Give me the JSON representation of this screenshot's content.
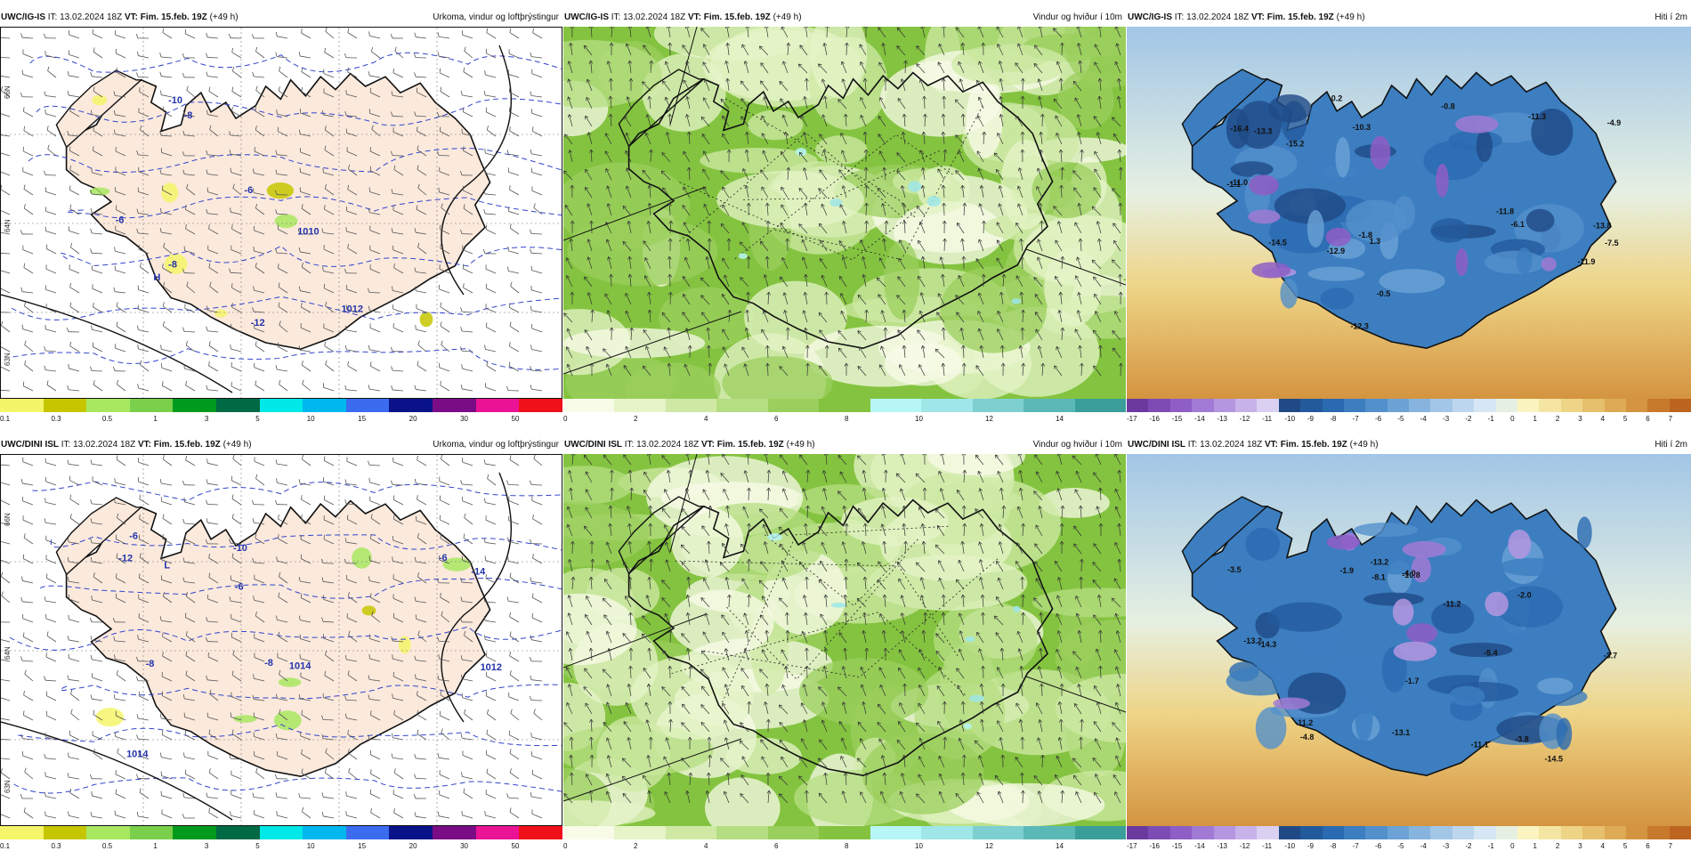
{
  "rows": [
    {
      "model": "UWC/IG-IS",
      "panels": [
        {
          "type": "precip",
          "model": "UWC/IG-IS",
          "it_text": "IT: 13.02.2024 18Z",
          "vt_text": "VT: Fim. 15.feb. 19Z",
          "lead": "(+49 h)",
          "title": "Úrkoma, vindur og loftþrýstingur",
          "labels": [
            "H",
            "1012",
            "1010",
            "-6",
            "-8",
            "-10",
            "-12",
            "-6",
            "-8"
          ],
          "lat_labels": [
            "66N",
            "64N",
            "63N"
          ]
        },
        {
          "type": "wind",
          "model": "UWC/IG-IS",
          "it_text": "IT: 13.02.2024 18Z",
          "vt_text": "VT: Fim. 15.feb. 19Z",
          "lead": "(+49 h)",
          "title": "Vindur og hviður í 10m"
        },
        {
          "type": "temp",
          "model": "UWC/IG-IS",
          "it_text": "IT: 13.02.2024 18Z",
          "vt_text": "VT: Fim. 15.feb. 19Z",
          "lead": "(+49 h)",
          "title": "Hiti í 2m",
          "values": [
            "-16.4",
            "-14.5",
            "-12.3",
            "-11.8",
            "-11.9",
            "-11.0",
            "-1.1",
            "-11.3",
            "-13.8",
            "-10.3",
            "-13.3",
            "-0.5",
            "-4.9",
            "-15.2",
            "-6.1",
            "-12.9",
            "-1.8",
            "0.2",
            "-0.8",
            "-7.5",
            "1.3"
          ]
        }
      ]
    },
    {
      "model": "UWC/DINI ISL",
      "panels": [
        {
          "type": "precip",
          "model": "UWC/DINI ISL",
          "it_text": "IT: 13.02.2024 18Z",
          "vt_text": "VT: Fim. 15.feb. 19Z",
          "lead": "(+49 h)",
          "title": "Úrkoma, vindur og loftþrýstingur",
          "labels": [
            "L",
            "1012",
            "1014",
            "1014",
            "-6",
            "-8",
            "-10",
            "-12",
            "-14",
            "-6",
            "-8",
            "-6"
          ],
          "lat_labels": [
            "66N",
            "64N",
            "63N"
          ]
        },
        {
          "type": "wind",
          "model": "UWC/DINI ISL",
          "it_text": "IT: 13.02.2024 18Z",
          "vt_text": "VT: Fim. 15.feb. 19Z",
          "lead": "(+49 h)",
          "title": "Vindur og hviður í 10m"
        },
        {
          "type": "temp",
          "model": "UWC/DINI ISL",
          "it_text": "IT: 13.02.2024 18Z",
          "vt_text": "VT: Fim. 15.feb. 19Z",
          "lead": "(+49 h)",
          "title": "Hiti í 2m",
          "values": [
            "-14.3",
            "-13.2",
            "-11.2",
            "-13.1",
            "-2.0",
            "-3.7",
            "-4.8",
            "-5.4",
            "-13.2",
            "-3.8",
            "-4.0",
            "-14.5",
            "-8.1",
            "-1.7",
            "-11.2",
            "-10.8",
            "-3.5",
            "-11.1",
            "-1.9"
          ]
        }
      ]
    }
  ],
  "legends": {
    "precip": {
      "ticks": [
        "0.1",
        "0.3",
        "0.5",
        "1",
        "3",
        "5",
        "10",
        "15",
        "20",
        "30",
        "50"
      ],
      "colors": [
        "#f5f56a",
        "#c6c600",
        "#a8e860",
        "#7ad04a",
        "#009a1e",
        "#006a44",
        "#00e8e8",
        "#00b8ee",
        "#3b6cf0",
        "#0a128a",
        "#7a0c86",
        "#ea1396",
        "#f0101a"
      ]
    },
    "wind": {
      "ticks": [
        "0",
        "2",
        "4",
        "6",
        "8",
        "10",
        "12",
        "14"
      ],
      "colors": [
        "#f8fbe8",
        "#e6f4c8",
        "#cfe9a5",
        "#b5dd82",
        "#9bcf5d",
        "#84c340",
        "#b6f6f6",
        "#9ee6e8",
        "#7ed0d0",
        "#5ab8b6",
        "#3a9e9a"
      ]
    },
    "temp": {
      "ticks": [
        "-17",
        "-16",
        "-15",
        "-14",
        "-13",
        "-12",
        "-11",
        "-10",
        "-9",
        "-8",
        "-7",
        "-6",
        "-5",
        "-4",
        "-3",
        "-2",
        "-1",
        "0",
        "1",
        "2",
        "3",
        "4",
        "5",
        "6",
        "7"
      ],
      "colors": [
        "#6a3a9e",
        "#7c4cb4",
        "#8e5ec6",
        "#a07ad4",
        "#b496e0",
        "#c8b2ea",
        "#dad0f2",
        "#1f4a86",
        "#235a9c",
        "#2a6ab0",
        "#3c7ec0",
        "#5290cc",
        "#6ca2d6",
        "#86b4de",
        "#a2c6e6",
        "#bcd6ee",
        "#d6e6f4",
        "#e6f0e2",
        "#fbf4c0",
        "#f4e6a2",
        "#eed486",
        "#e6c06c",
        "#deaa56",
        "#d49440",
        "#c87a2c",
        "#bc6420"
      ]
    }
  }
}
